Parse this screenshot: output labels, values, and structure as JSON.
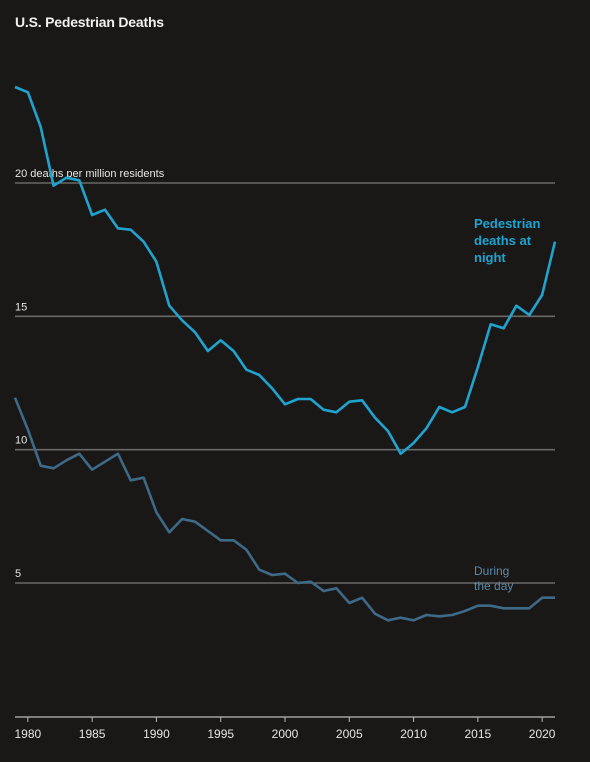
{
  "chart_data": {
    "type": "line",
    "title": "U.S. Pedestrian Deaths",
    "y_unit_label": "20 deaths per million residents",
    "yticks": [
      {
        "value": 20,
        "label": "20 deaths per million residents"
      },
      {
        "value": 15,
        "label": "15"
      },
      {
        "value": 10,
        "label": "10"
      },
      {
        "value": 5,
        "label": "5"
      }
    ],
    "xticks": [
      1980,
      1985,
      1990,
      1995,
      2000,
      2005,
      2010,
      2015,
      2020
    ],
    "xlim": [
      1979,
      2021
    ],
    "ylim": [
      0,
      24
    ],
    "grid": true,
    "series": [
      {
        "name": "Pedestrian deaths at night",
        "label_lines": [
          "Pedestrian",
          "deaths at",
          "night"
        ],
        "color": "#1fa3cf",
        "x": [
          1979,
          1980,
          1981,
          1982,
          1983,
          1984,
          1985,
          1986,
          1987,
          1988,
          1989,
          1990,
          1991,
          1992,
          1993,
          1994,
          1995,
          1996,
          1997,
          1998,
          1999,
          2000,
          2001,
          2002,
          2003,
          2004,
          2005,
          2006,
          2007,
          2008,
          2009,
          2010,
          2011,
          2012,
          2013,
          2014,
          2015,
          2016,
          2017,
          2018,
          2019,
          2020,
          2021
        ],
        "values": [
          23.6,
          23.4,
          22.1,
          19.9,
          20.2,
          20.1,
          18.8,
          19.0,
          18.3,
          18.25,
          17.8,
          17.05,
          15.4,
          14.85,
          14.4,
          13.7,
          14.1,
          13.7,
          13.0,
          12.8,
          12.3,
          11.7,
          11.9,
          11.9,
          11.5,
          11.4,
          11.8,
          11.85,
          11.2,
          10.7,
          9.85,
          10.25,
          10.8,
          11.6,
          11.4,
          11.6,
          13.1,
          14.7,
          14.55,
          15.4,
          15.05,
          15.8,
          17.8
        ]
      },
      {
        "name": "During the day",
        "label_lines": [
          "During",
          "the day"
        ],
        "color": "#3d6a87",
        "x": [
          1979,
          1980,
          1981,
          1982,
          1983,
          1984,
          1985,
          1986,
          1987,
          1988,
          1989,
          1990,
          1991,
          1992,
          1993,
          1994,
          1995,
          1996,
          1997,
          1998,
          1999,
          2000,
          2001,
          2002,
          2003,
          2004,
          2005,
          2006,
          2007,
          2008,
          2009,
          2010,
          2011,
          2012,
          2013,
          2014,
          2015,
          2016,
          2017,
          2018,
          2019,
          2020,
          2021
        ],
        "values": [
          11.95,
          10.75,
          9.4,
          9.3,
          9.6,
          9.85,
          9.25,
          9.55,
          9.85,
          8.85,
          8.95,
          7.65,
          6.9,
          7.4,
          7.3,
          6.95,
          6.6,
          6.6,
          6.25,
          5.5,
          5.3,
          5.35,
          5.0,
          5.05,
          4.7,
          4.8,
          4.25,
          4.45,
          3.85,
          3.6,
          3.7,
          3.6,
          3.8,
          3.75,
          3.8,
          3.95,
          4.15,
          4.15,
          4.05,
          4.05,
          4.05,
          4.45,
          4.45
        ]
      }
    ]
  }
}
